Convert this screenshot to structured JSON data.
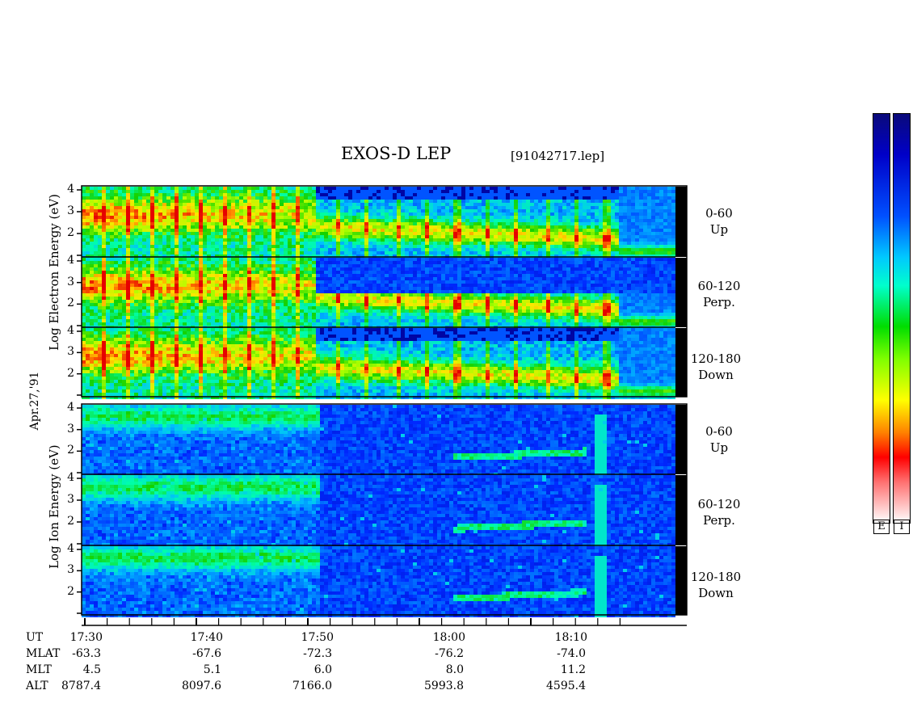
{
  "header": {
    "title": "EXOS-D LEP",
    "file_label": "[91042717.lep]"
  },
  "date_label": "Apr.27,'91",
  "electron": {
    "ylabel": "Log Electron Energy (eV)",
    "panels": [
      {
        "angle": "0-60",
        "direction": "Up"
      },
      {
        "angle": "60-120",
        "direction": "Perp."
      },
      {
        "angle": "120-180",
        "direction": "Down"
      }
    ]
  },
  "ion": {
    "ylabel": "Log Ion Energy (eV)",
    "panels": [
      {
        "angle": "0-60",
        "direction": "Up"
      },
      {
        "angle": "60-120",
        "direction": "Perp."
      },
      {
        "angle": "120-180",
        "direction": "Down"
      }
    ]
  },
  "colorbar": {
    "labels": [
      "E",
      "I"
    ]
  },
  "ephemeris": {
    "row_labels": [
      "UT",
      "MLAT",
      "MLT",
      "ALT"
    ],
    "columns": [
      {
        "UT": "17:30",
        "MLAT": "-63.3",
        "MLT": "4.5",
        "ALT": "8787.4"
      },
      {
        "UT": "17:40",
        "MLAT": "-67.6",
        "MLT": "5.1",
        "ALT": "8097.6"
      },
      {
        "UT": "17:50",
        "MLAT": "-72.3",
        "MLT": "6.0",
        "ALT": "7166.0"
      },
      {
        "UT": "18:00",
        "MLAT": "-76.2",
        "MLT": "8.0",
        "ALT": "5993.8"
      },
      {
        "UT": "18:10",
        "MLAT": "-74.0",
        "MLT": "11.2",
        "ALT": "4595.4"
      }
    ]
  },
  "chart_data": {
    "type": "heatmap",
    "title": "EXOS-D LEP",
    "x_axis": {
      "label": "UT",
      "tick_labels": [
        "17:30",
        "17:40",
        "17:50",
        "18:00",
        "18:10"
      ],
      "range": [
        "17:30",
        "18:18"
      ]
    },
    "y_axis": {
      "ticks": [
        2,
        3,
        4
      ],
      "range": [
        1,
        4
      ]
    },
    "panels": [
      {
        "species": "electron",
        "pitch_angle": "0-60",
        "direction": "Up"
      },
      {
        "species": "electron",
        "pitch_angle": "60-120",
        "direction": "Perp."
      },
      {
        "species": "electron",
        "pitch_angle": "120-180",
        "direction": "Down"
      },
      {
        "species": "ion",
        "pitch_angle": "0-60",
        "direction": "Up"
      },
      {
        "species": "ion",
        "pitch_angle": "60-120",
        "direction": "Perp."
      },
      {
        "species": "ion",
        "pitch_angle": "120-180",
        "direction": "Down"
      }
    ]
  }
}
